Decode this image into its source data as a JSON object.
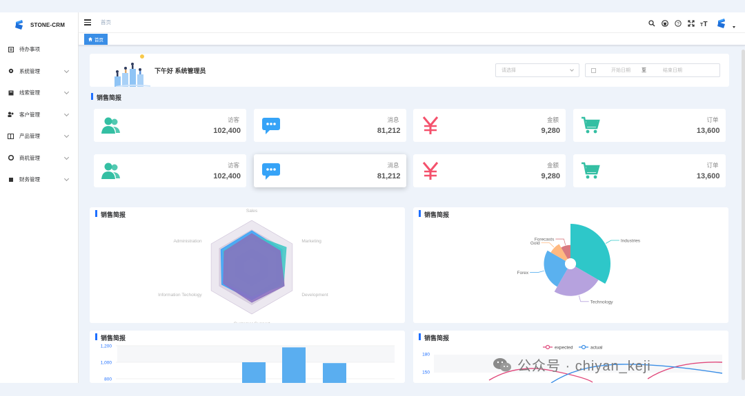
{
  "app": {
    "logo_text": "STONE-CRM"
  },
  "sidebar": {
    "items": [
      {
        "label": "待办事项",
        "icon": "todo-icon",
        "has_children": false
      },
      {
        "label": "系统管理",
        "icon": "gear-icon",
        "has_children": true
      },
      {
        "label": "线索管理",
        "icon": "clue-icon",
        "has_children": true
      },
      {
        "label": "客户管理",
        "icon": "customer-icon",
        "has_children": true
      },
      {
        "label": "产品管理",
        "icon": "product-icon",
        "has_children": true
      },
      {
        "label": "商机管理",
        "icon": "opportunity-icon",
        "has_children": true
      },
      {
        "label": "财务管理",
        "icon": "finance-icon",
        "has_children": true
      }
    ]
  },
  "header": {
    "breadcrumb": "首页",
    "toolbar_icons": [
      "search-icon",
      "github-icon",
      "help-icon",
      "fullscreen-icon",
      "font-size-icon"
    ]
  },
  "tags": {
    "active": "首页"
  },
  "welcome": {
    "greeting": "下午好 系统管理员",
    "select_placeholder": "请选择",
    "date_start_placeholder": "开始日期",
    "date_separator": "至",
    "date_end_placeholder": "结束日期"
  },
  "section_title": "销售简报",
  "stats_row1": [
    {
      "label": "访客",
      "value": "102,400",
      "icon": "visitors-icon",
      "color": "#34bfa3"
    },
    {
      "label": "消息",
      "value": "81,212",
      "icon": "message-icon",
      "color": "#36a3f7"
    },
    {
      "label": "金额",
      "value": "9,280",
      "icon": "yen-icon",
      "color": "#f4516c"
    },
    {
      "label": "订单",
      "value": "13,600",
      "icon": "cart-icon",
      "color": "#34bfa3"
    }
  ],
  "stats_row2": [
    {
      "label": "访客",
      "value": "102,400",
      "icon": "visitors-icon",
      "color": "#34bfa3"
    },
    {
      "label": "消息",
      "value": "81,212",
      "icon": "message-icon",
      "color": "#36a3f7"
    },
    {
      "label": "金额",
      "value": "9,280",
      "icon": "yen-icon",
      "color": "#f4516c"
    },
    {
      "label": "订单",
      "value": "13,600",
      "icon": "cart-icon",
      "color": "#34bfa3"
    }
  ],
  "panels": {
    "radar_title": "销售简报",
    "pie_title": "销售简报",
    "bar_title": "销售简报",
    "line_title": "销售简报"
  },
  "chart_data": [
    {
      "type": "radar",
      "title": "",
      "indicators": [
        "Sales",
        "Marketing",
        "Development",
        "Customer Support",
        "Information Techology",
        "Administration"
      ],
      "series": [
        {
          "values": [
            0.78,
            0.75,
            0.72,
            0.7,
            0.74,
            0.76
          ],
          "color": "#36a3f7"
        },
        {
          "values": [
            0.7,
            0.85,
            0.78,
            0.62,
            0.66,
            0.7
          ],
          "color": "#40c9c6"
        },
        {
          "values": [
            0.72,
            0.7,
            0.8,
            0.75,
            0.7,
            0.68
          ],
          "color": "#8b6fbf"
        }
      ],
      "ring_color": "#a898b8"
    },
    {
      "type": "pie",
      "rose": true,
      "title": "",
      "slices": [
        {
          "name": "Industries",
          "value": 400,
          "color": "#2ec7c9"
        },
        {
          "name": "Technology",
          "value": 240,
          "color": "#b6a2de"
        },
        {
          "name": "Forex",
          "value": 149,
          "color": "#5ab1ef"
        },
        {
          "name": "Gold",
          "value": 100,
          "color": "#ffb980"
        },
        {
          "name": "Forecasts",
          "value": 59,
          "color": "#d87a80"
        }
      ]
    },
    {
      "type": "bar",
      "title": "",
      "yticks": [
        "1,200",
        "1,000",
        "800"
      ],
      "ylim": [
        800,
        1200
      ],
      "values": [
        1000,
        1180,
        990
      ],
      "color": "#5aaef0"
    },
    {
      "type": "line",
      "title": "",
      "series": [
        {
          "name": "expected",
          "color": "#e0487b"
        },
        {
          "name": "actual",
          "color": "#3a8ee6"
        }
      ],
      "yticks": [
        "180",
        "150"
      ]
    }
  ],
  "watermark": {
    "text": "公众号 · chiyan_keji"
  }
}
